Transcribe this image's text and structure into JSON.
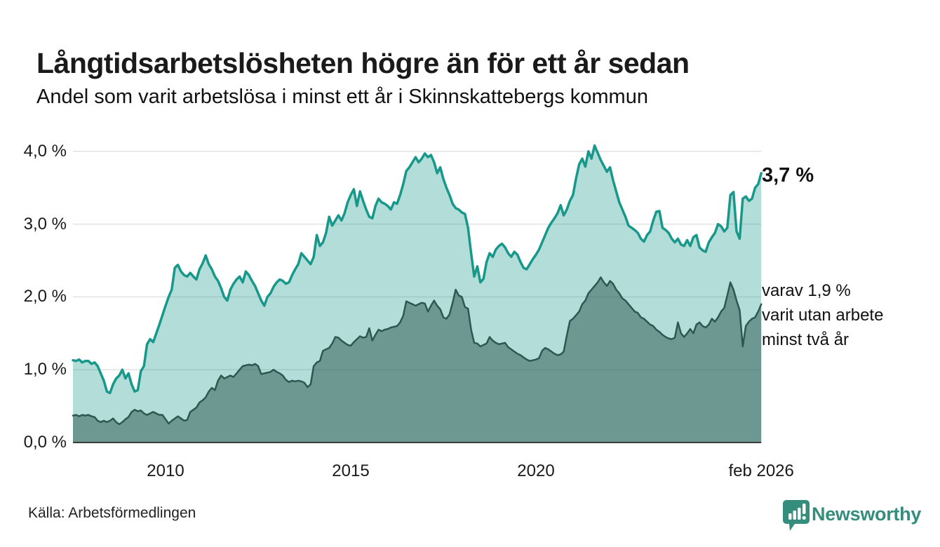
{
  "header": {
    "title": "Långtidsarbetslösheten högre än för ett år sedan",
    "subtitle": "Andel som varit arbetslösa i minst ett år i Skinnskattebergs kommun"
  },
  "annotations": {
    "latest_total": "3,7 %",
    "latest_breakdown": "varav 1,9 %\nvarit utan arbete\nminst två år"
  },
  "footer": {
    "source": "Källa: Arbetsförmedlingen",
    "brand": "Newsworthy",
    "brand_icon": "bar-chart-speech-bubble-icon"
  },
  "colors": {
    "line_1yr": "#17988a",
    "fill_1yr": "rgba(23,152,138,0.33)",
    "line_2yr": "#2d5750",
    "fill_2yr": "rgba(45,87,80,0.52)",
    "grid": "#e2e2e2",
    "baseline": "#3b3b3b",
    "brand_teal": "#348d7d",
    "text": "#1a1a1a"
  },
  "chart_data": {
    "type": "area",
    "title": "Långtidsarbetslösheten högre än för ett år sedan",
    "subtitle": "Andel som varit arbetslösa i minst ett år i Skinnskattebergs kommun",
    "unit": "%",
    "frequency": "monthly",
    "x_start": "2007-07",
    "x_end": "2026-02",
    "ylim": [
      0,
      4.3
    ],
    "grid": true,
    "y_ticks": [
      {
        "value": 4,
        "label": "4,0 %"
      },
      {
        "value": 3,
        "label": "3,0 %"
      },
      {
        "value": 2,
        "label": "2,0 %"
      },
      {
        "value": 1,
        "label": "1,0 %"
      },
      {
        "value": 0,
        "label": "0,0 %"
      }
    ],
    "x_ticks": [
      {
        "t": 2010,
        "label": "2010"
      },
      {
        "t": 2015,
        "label": "2015"
      },
      {
        "t": 2020,
        "label": "2020"
      },
      {
        "t": 2026.083,
        "label": "feb 2026"
      }
    ],
    "series": [
      {
        "name": "Arbetslösa minst ett år",
        "last_value_label": "3,7 %",
        "values": [
          1.13,
          1.12,
          1.14,
          1.1,
          1.12,
          1.12,
          1.08,
          1.1,
          1.05,
          0.95,
          0.85,
          0.7,
          0.68,
          0.8,
          0.88,
          0.92,
          1.0,
          0.88,
          0.95,
          0.8,
          0.7,
          0.72,
          0.98,
          1.05,
          1.35,
          1.42,
          1.38,
          1.5,
          1.62,
          1.75,
          1.88,
          2.0,
          2.1,
          2.4,
          2.44,
          2.35,
          2.3,
          2.28,
          2.33,
          2.28,
          2.24,
          2.38,
          2.46,
          2.57,
          2.45,
          2.38,
          2.28,
          2.22,
          2.12,
          2.0,
          1.95,
          2.1,
          2.18,
          2.24,
          2.28,
          2.2,
          2.35,
          2.3,
          2.22,
          2.15,
          2.05,
          1.95,
          1.88,
          2.0,
          2.05,
          2.14,
          2.2,
          2.24,
          2.22,
          2.18,
          2.2,
          2.3,
          2.38,
          2.45,
          2.6,
          2.55,
          2.5,
          2.45,
          2.55,
          2.85,
          2.7,
          2.75,
          2.88,
          3.1,
          2.98,
          3.05,
          3.12,
          3.05,
          3.15,
          3.3,
          3.4,
          3.48,
          3.25,
          3.45,
          3.32,
          3.2,
          3.1,
          3.08,
          3.25,
          3.35,
          3.3,
          3.28,
          3.25,
          3.2,
          3.3,
          3.28,
          3.4,
          3.55,
          3.73,
          3.78,
          3.85,
          3.92,
          3.85,
          3.9,
          3.97,
          3.92,
          3.95,
          3.85,
          3.7,
          3.78,
          3.62,
          3.5,
          3.4,
          3.28,
          3.22,
          3.2,
          3.16,
          3.14,
          2.95,
          2.6,
          2.28,
          2.42,
          2.2,
          2.25,
          2.48,
          2.6,
          2.55,
          2.65,
          2.7,
          2.73,
          2.68,
          2.6,
          2.55,
          2.62,
          2.58,
          2.48,
          2.4,
          2.38,
          2.45,
          2.52,
          2.58,
          2.65,
          2.75,
          2.85,
          2.95,
          3.02,
          3.08,
          3.15,
          3.26,
          3.12,
          3.2,
          3.32,
          3.4,
          3.63,
          3.82,
          3.9,
          3.79,
          4.0,
          3.9,
          4.08,
          3.98,
          3.88,
          3.8,
          3.72,
          3.78,
          3.6,
          3.45,
          3.3,
          3.2,
          3.1,
          2.98,
          2.95,
          2.92,
          2.88,
          2.8,
          2.76,
          2.85,
          2.9,
          3.05,
          3.17,
          3.18,
          2.95,
          2.92,
          2.88,
          2.8,
          2.75,
          2.8,
          2.72,
          2.7,
          2.78,
          2.7,
          2.82,
          2.85,
          2.68,
          2.64,
          2.62,
          2.75,
          2.82,
          2.88,
          3.0,
          2.97,
          2.9,
          2.95,
          3.4,
          3.44,
          2.9,
          2.8,
          3.35,
          3.38,
          3.32,
          3.35,
          3.5,
          3.55,
          3.7
        ]
      },
      {
        "name": "Varav utan arbete minst två år",
        "last_value_label": "1,9 %",
        "values": [
          0.37,
          0.38,
          0.36,
          0.38,
          0.37,
          0.38,
          0.36,
          0.35,
          0.3,
          0.28,
          0.3,
          0.28,
          0.3,
          0.33,
          0.28,
          0.25,
          0.28,
          0.32,
          0.35,
          0.42,
          0.45,
          0.43,
          0.44,
          0.4,
          0.38,
          0.4,
          0.42,
          0.4,
          0.38,
          0.38,
          0.32,
          0.26,
          0.3,
          0.33,
          0.36,
          0.33,
          0.3,
          0.31,
          0.42,
          0.45,
          0.48,
          0.55,
          0.58,
          0.62,
          0.7,
          0.75,
          0.72,
          0.85,
          0.92,
          0.88,
          0.9,
          0.92,
          0.9,
          0.95,
          1.0,
          1.05,
          1.06,
          1.07,
          1.06,
          1.08,
          1.05,
          0.94,
          0.95,
          0.96,
          0.97,
          1.0,
          0.97,
          0.95,
          0.92,
          0.86,
          0.83,
          0.85,
          0.84,
          0.85,
          0.84,
          0.82,
          0.76,
          0.8,
          1.05,
          1.1,
          1.12,
          1.26,
          1.28,
          1.3,
          1.36,
          1.45,
          1.44,
          1.4,
          1.37,
          1.34,
          1.33,
          1.38,
          1.42,
          1.46,
          1.44,
          1.45,
          1.57,
          1.4,
          1.48,
          1.55,
          1.53,
          1.55,
          1.56,
          1.58,
          1.59,
          1.6,
          1.65,
          1.74,
          1.94,
          1.92,
          1.9,
          1.88,
          1.9,
          1.92,
          1.91,
          1.8,
          1.88,
          1.95,
          1.88,
          1.83,
          1.72,
          1.7,
          1.76,
          1.92,
          2.1,
          2.02,
          2.0,
          1.86,
          1.84,
          1.55,
          1.37,
          1.36,
          1.32,
          1.34,
          1.36,
          1.45,
          1.4,
          1.37,
          1.35,
          1.36,
          1.37,
          1.31,
          1.28,
          1.25,
          1.22,
          1.2,
          1.17,
          1.14,
          1.12,
          1.13,
          1.14,
          1.16,
          1.26,
          1.3,
          1.28,
          1.25,
          1.22,
          1.2,
          1.21,
          1.25,
          1.47,
          1.67,
          1.7,
          1.75,
          1.8,
          1.9,
          1.95,
          2.05,
          2.1,
          2.15,
          2.2,
          2.27,
          2.2,
          2.15,
          2.22,
          2.18,
          2.1,
          2.05,
          1.98,
          1.95,
          1.9,
          1.85,
          1.8,
          1.78,
          1.72,
          1.7,
          1.66,
          1.62,
          1.6,
          1.55,
          1.52,
          1.48,
          1.45,
          1.43,
          1.42,
          1.44,
          1.65,
          1.5,
          1.45,
          1.5,
          1.56,
          1.5,
          1.62,
          1.65,
          1.6,
          1.58,
          1.62,
          1.7,
          1.66,
          1.72,
          1.8,
          1.85,
          2.02,
          2.2,
          2.1,
          1.95,
          1.82,
          1.32,
          1.6,
          1.66,
          1.7,
          1.72,
          1.8,
          1.9
        ]
      }
    ]
  }
}
